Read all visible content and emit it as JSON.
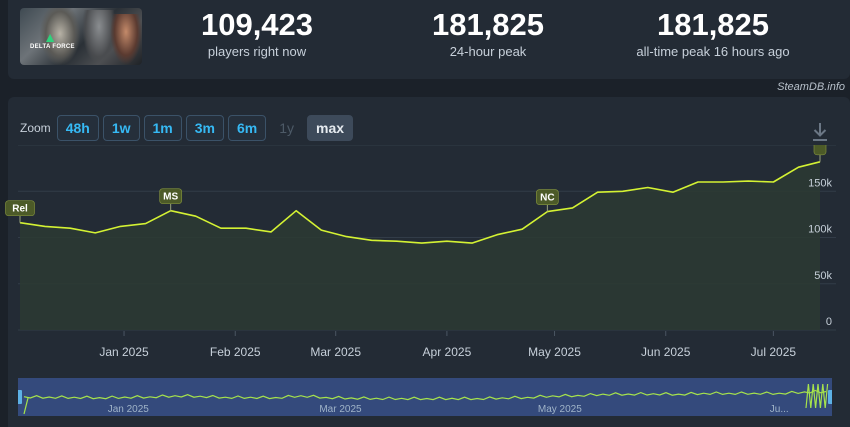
{
  "stats": {
    "now": {
      "value": "109,423",
      "label": "players right now"
    },
    "peak24h": {
      "value": "181,825",
      "label": "24-hour peak"
    },
    "alltime": {
      "value": "181,825",
      "label": "all-time peak 16 hours ago"
    }
  },
  "game": {
    "logo_text": "DELTA FORCE"
  },
  "credit": "SteamDB.info",
  "zoom": {
    "label": "Zoom",
    "buttons": [
      {
        "label": "48h",
        "state": "enabled"
      },
      {
        "label": "1w",
        "state": "enabled"
      },
      {
        "label": "1m",
        "state": "enabled"
      },
      {
        "label": "3m",
        "state": "enabled"
      },
      {
        "label": "6m",
        "state": "enabled"
      },
      {
        "label": "1y",
        "state": "disabled"
      },
      {
        "label": "max",
        "state": "active"
      }
    ]
  },
  "icons": {
    "download": "download-icon"
  },
  "colors": {
    "line": "#d4f233",
    "nav_line": "#a6e34c",
    "accent": "#36b9f4",
    "flag": "#4c5a28"
  },
  "chart_data": {
    "type": "line",
    "series": [
      {
        "points": [
          [
            "2024-12-03",
            116000
          ],
          [
            "2024-12-10",
            112000
          ],
          [
            "2024-12-17",
            110000
          ],
          [
            "2024-12-24",
            105000
          ],
          [
            "2024-12-31",
            112000
          ],
          [
            "2025-01-07",
            115000
          ],
          [
            "2025-01-14",
            129000
          ],
          [
            "2025-01-21",
            123000
          ],
          [
            "2025-01-28",
            110000
          ],
          [
            "2025-02-04",
            110000
          ],
          [
            "2025-02-11",
            106000
          ],
          [
            "2025-02-18",
            129000
          ],
          [
            "2025-02-25",
            108000
          ],
          [
            "2025-03-04",
            101000
          ],
          [
            "2025-03-11",
            97000
          ],
          [
            "2025-03-18",
            96000
          ],
          [
            "2025-03-25",
            94000
          ],
          [
            "2025-04-01",
            96000
          ],
          [
            "2025-04-08",
            94000
          ],
          [
            "2025-04-15",
            103000
          ],
          [
            "2025-04-22",
            109000
          ],
          [
            "2025-04-29",
            128000
          ],
          [
            "2025-05-06",
            132000
          ],
          [
            "2025-05-13",
            149000
          ],
          [
            "2025-05-20",
            150000
          ],
          [
            "2025-05-27",
            154000
          ],
          [
            "2025-06-03",
            149000
          ],
          [
            "2025-06-10",
            160000
          ],
          [
            "2025-06-17",
            160000
          ],
          [
            "2025-06-24",
            161000
          ],
          [
            "2025-07-01",
            160000
          ],
          [
            "2025-07-08",
            176000
          ],
          [
            "2025-07-14",
            181825
          ]
        ]
      }
    ],
    "x_ticks": [
      {
        "date": "2025-01-01",
        "label": "Jan 2025"
      },
      {
        "date": "2025-02-01",
        "label": "Feb 2025"
      },
      {
        "date": "2025-03-01",
        "label": "Mar 2025"
      },
      {
        "date": "2025-04-01",
        "label": "Apr 2025"
      },
      {
        "date": "2025-05-01",
        "label": "May 2025"
      },
      {
        "date": "2025-06-01",
        "label": "Jun 2025"
      },
      {
        "date": "2025-07-01",
        "label": "Jul 2025"
      }
    ],
    "y_ticks": [
      {
        "value": 0,
        "label": "0"
      },
      {
        "value": 50000,
        "label": "50k"
      },
      {
        "value": 100000,
        "label": "100k"
      },
      {
        "value": 150000,
        "label": "150k"
      }
    ],
    "y_range": [
      0,
      200000
    ],
    "x_range": [
      "2024-12-03",
      "2025-07-14"
    ],
    "flags": [
      {
        "date": "2024-12-03",
        "label": "Rel"
      },
      {
        "date": "2025-01-14",
        "label": "MS"
      },
      {
        "date": "2025-04-29",
        "label": "NC"
      },
      {
        "date": "2025-07-14",
        "label": ""
      }
    ],
    "grid": true,
    "legend": "none",
    "navigator": {
      "x_ticks": [
        {
          "date": "2025-01-01",
          "label": "Jan 2025"
        },
        {
          "date": "2025-03-01",
          "label": "Mar 2025"
        },
        {
          "date": "2025-05-01",
          "label": "May 2025"
        },
        {
          "date": "2025-07-01",
          "label": "Ju..."
        }
      ]
    }
  }
}
